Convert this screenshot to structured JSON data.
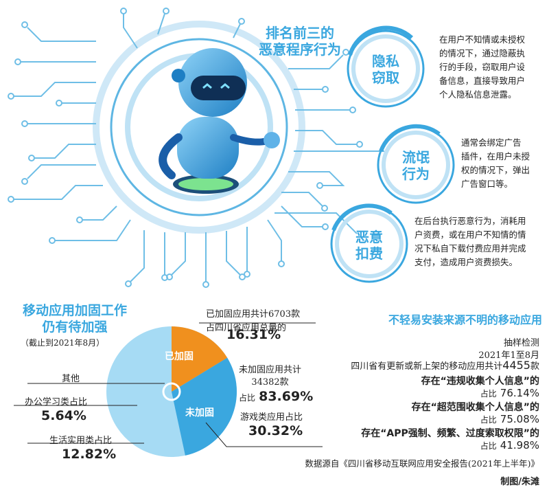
{
  "title_top": "排名前三的\n恶意程序行为",
  "behaviors": [
    {
      "label": "隐私\n窃取",
      "desc": "在用户不知情或未授权\n的情况下，通过隐蔽执\n行的手段，窃取用户设\n备信息，直接导致用户\n个人隐私信息泄露。"
    },
    {
      "label": "流氓\n行为",
      "desc": "通常会绑定广告\n插件，在用户未授\n权的情况下，弹出\n广告窗口等。"
    },
    {
      "label": "恶意\n扣费",
      "desc": "在后台执行恶意行为，消耗用\n户资费，或在用户不知情的情\n况下私自下载付费应用并完成\n支付，造成用户资费损失。"
    }
  ],
  "left": {
    "title": "移动应用加固工作\n仍有待加强",
    "subtitle": "（截止到2021年8月）",
    "hardened_text": "已加固应用共计6703款\n占四川省应用总量的",
    "hardened_pct": "16.31%",
    "unhardened_text": "未加固应用共计\n34382款",
    "unhardened_prefix": "占比",
    "unhardened_pct": "83.69%",
    "game_text": "游戏类应用占比",
    "game_pct": "30.32%",
    "other_label": "其他",
    "office_text": "办公学习类占比",
    "office_pct": "5.64%",
    "life_text": "生活实用类占比",
    "life_pct": "12.82%",
    "pie_label_hardened": "已加固",
    "pie_label_unhardened": "未加固"
  },
  "right": {
    "title": "不轻易安装来源不明的移动应用",
    "line1": "抽样检测",
    "line2": "2021年1至8月",
    "line3_prefix": "四川省有更新或新上架的移动应用共计",
    "line3_num": "4455",
    "line3_suffix": "款",
    "items": [
      {
        "text": "存在“违规收集个人信息”的",
        "prefix": "占比",
        "pct": "76.14%"
      },
      {
        "text": "存在“超范围收集个人信息”的",
        "prefix": "占比",
        "pct": "75.08%"
      },
      {
        "text": "存在“APP强制、频繁、过度索取权限”的",
        "prefix": "占比",
        "pct": "41.98%"
      }
    ]
  },
  "source": "数据源自《四川省移动互联网应用安全报告(2021年上半年)》",
  "credit": "制图/朱滩",
  "chart_data": {
    "type": "pie",
    "title": "移动应用加固工作仍有待加强",
    "slices": [
      {
        "name": "已加固",
        "value": 16.31,
        "color": "#f0901e"
      },
      {
        "name": "未加固",
        "value": 83.69,
        "color": "#3aa7df"
      }
    ],
    "unhardened_breakdown": [
      {
        "name": "游戏类",
        "value": 30.32
      },
      {
        "name": "生活实用类",
        "value": 12.82
      },
      {
        "name": "办公学习类",
        "value": 5.64
      }
    ]
  }
}
